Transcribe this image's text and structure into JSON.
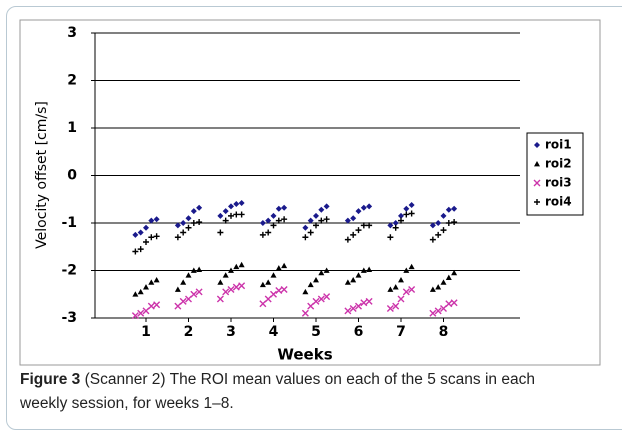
{
  "chart_data": {
    "type": "scatter",
    "xlabel": "Weeks",
    "ylabel": "Velocity offset [cm/s]",
    "xlim": [
      -0.2,
      9.8
    ],
    "xticks": [
      1,
      2,
      3,
      4,
      5,
      6,
      7,
      8
    ],
    "ylim": [
      -3,
      3
    ],
    "yticks": [
      -3,
      -2,
      -1,
      0,
      1,
      2,
      3
    ],
    "grid": true,
    "legend": "right",
    "x": [
      0.75,
      0.875,
      1,
      1.125,
      1.25,
      1.75,
      1.875,
      2,
      2.125,
      2.25,
      2.75,
      2.875,
      3,
      3.125,
      3.25,
      3.75,
      3.875,
      4,
      4.125,
      4.25,
      4.75,
      4.875,
      5,
      5.125,
      5.25,
      5.75,
      5.875,
      6,
      6.125,
      6.25,
      6.75,
      6.875,
      7,
      7.125,
      7.25,
      7.75,
      7.875,
      8,
      8.125,
      8.25
    ],
    "series": [
      {
        "name": "roi1",
        "color": "#1a1a8c",
        "marker": "diamond",
        "values": [
          -1.25,
          -1.2,
          -1.1,
          -0.95,
          -0.92,
          -1.05,
          -1.0,
          -0.9,
          -0.75,
          -0.68,
          -0.85,
          -0.75,
          -0.65,
          -0.6,
          -0.58,
          -1.0,
          -0.95,
          -0.85,
          -0.7,
          -0.68,
          -1.1,
          -0.95,
          -0.85,
          -0.72,
          -0.65,
          -0.95,
          -0.9,
          -0.75,
          -0.68,
          -0.65,
          -1.05,
          -1.0,
          -0.85,
          -0.7,
          -0.62,
          -1.05,
          -1.0,
          -0.85,
          -0.72,
          -0.7
        ]
      },
      {
        "name": "roi2",
        "color": "#000000",
        "marker": "triangle",
        "values": [
          -2.5,
          -2.45,
          -2.35,
          -2.25,
          -2.2,
          -2.4,
          -2.25,
          -2.1,
          -2.0,
          -1.98,
          -2.25,
          -2.1,
          -2.0,
          -1.92,
          -1.88,
          -2.3,
          -2.25,
          -2.1,
          -1.95,
          -1.9,
          -2.45,
          -2.3,
          -2.2,
          -2.05,
          -2.0,
          -2.25,
          -2.2,
          -2.1,
          -2.0,
          -1.98,
          -2.4,
          -2.35,
          -2.2,
          -2.0,
          -1.92,
          -2.4,
          -2.35,
          -2.25,
          -2.15,
          -2.05
        ]
      },
      {
        "name": "roi3",
        "color": "#cc33aa",
        "marker": "x",
        "values": [
          -2.95,
          -2.9,
          -2.85,
          -2.75,
          -2.72,
          -2.75,
          -2.65,
          -2.6,
          -2.5,
          -2.45,
          -2.6,
          -2.45,
          -2.4,
          -2.35,
          -2.32,
          -2.7,
          -2.6,
          -2.5,
          -2.42,
          -2.4,
          -2.9,
          -2.75,
          -2.65,
          -2.6,
          -2.55,
          -2.85,
          -2.8,
          -2.75,
          -2.68,
          -2.65,
          -2.8,
          -2.75,
          -2.6,
          -2.45,
          -2.4,
          -2.9,
          -2.85,
          -2.8,
          -2.7,
          -2.68
        ]
      },
      {
        "name": "roi4",
        "color": "#000000",
        "marker": "plus",
        "values": [
          -1.6,
          -1.55,
          -1.4,
          -1.3,
          -1.28,
          -1.3,
          -1.2,
          -1.1,
          -1.0,
          -0.98,
          -1.2,
          -0.95,
          -0.85,
          -0.82,
          -0.82,
          -1.25,
          -1.2,
          -1.05,
          -0.95,
          -0.92,
          -1.3,
          -1.2,
          -1.05,
          -0.95,
          -0.92,
          -1.35,
          -1.25,
          -1.15,
          -1.05,
          -1.05,
          -1.3,
          -1.1,
          -0.95,
          -0.82,
          -0.8,
          -1.35,
          -1.25,
          -1.15,
          -1.0,
          -0.98
        ]
      }
    ]
  },
  "caption": {
    "label": "Figure 3",
    "text": " (Scanner 2) The ROI mean values on each of the 5 scans in each weekly session, for weeks 1–8."
  }
}
